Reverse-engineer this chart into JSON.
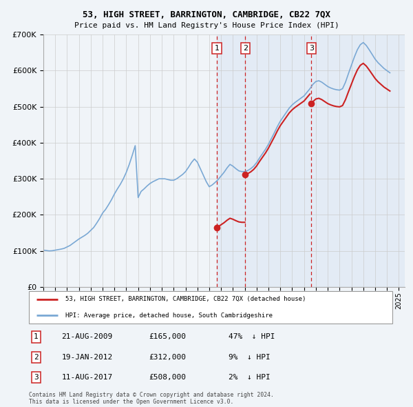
{
  "title": "53, HIGH STREET, BARRINGTON, CAMBRIDGE, CB22 7QX",
  "subtitle": "Price paid vs. HM Land Registry's House Price Index (HPI)",
  "ylim": [
    0,
    700000
  ],
  "yticks": [
    0,
    100000,
    200000,
    300000,
    400000,
    500000,
    600000,
    700000
  ],
  "ytick_labels": [
    "£0",
    "£100K",
    "£200K",
    "£300K",
    "£400K",
    "£500K",
    "£600K",
    "£700K"
  ],
  "xlim_start": 1995.0,
  "xlim_end": 2025.5,
  "background_color": "#f0f4f8",
  "plot_bg_color": "#f0f4f8",
  "grid_color": "#cccccc",
  "hpi_color": "#7aa8d4",
  "price_color": "#cc2222",
  "shade_color": "#ccddf0",
  "legend_hpi_label": "HPI: Average price, detached house, South Cambridgeshire",
  "legend_price_label": "53, HIGH STREET, BARRINGTON, CAMBRIDGE, CB22 7QX (detached house)",
  "transactions": [
    {
      "num": 1,
      "date_str": "21-AUG-2009",
      "date_x": 2009.64,
      "price": 165000,
      "pct": "47%",
      "dir": "↓"
    },
    {
      "num": 2,
      "date_str": "19-JAN-2012",
      "date_x": 2012.05,
      "price": 312000,
      "pct": "9%",
      "dir": "↓"
    },
    {
      "num": 3,
      "date_str": "11-AUG-2017",
      "date_x": 2017.61,
      "price": 508000,
      "pct": "2%",
      "dir": "↓"
    }
  ],
  "footer1": "Contains HM Land Registry data © Crown copyright and database right 2024.",
  "footer2": "This data is licensed under the Open Government Licence v3.0.",
  "hpi_years": [
    1995.0,
    1995.25,
    1995.5,
    1995.75,
    1996.0,
    1996.25,
    1996.5,
    1996.75,
    1997.0,
    1997.25,
    1997.5,
    1997.75,
    1998.0,
    1998.25,
    1998.5,
    1998.75,
    1999.0,
    1999.25,
    1999.5,
    1999.75,
    2000.0,
    2000.25,
    2000.5,
    2000.75,
    2001.0,
    2001.25,
    2001.5,
    2001.75,
    2002.0,
    2002.25,
    2002.5,
    2002.75,
    2003.0,
    2003.25,
    2003.5,
    2003.75,
    2004.0,
    2004.25,
    2004.5,
    2004.75,
    2005.0,
    2005.25,
    2005.5,
    2005.75,
    2006.0,
    2006.25,
    2006.5,
    2006.75,
    2007.0,
    2007.25,
    2007.5,
    2007.75,
    2008.0,
    2008.25,
    2008.5,
    2008.75,
    2009.0,
    2009.25,
    2009.5,
    2009.75,
    2010.0,
    2010.25,
    2010.5,
    2010.75,
    2011.0,
    2011.25,
    2011.5,
    2011.75,
    2012.0,
    2012.25,
    2012.5,
    2012.75,
    2013.0,
    2013.25,
    2013.5,
    2013.75,
    2014.0,
    2014.25,
    2014.5,
    2014.75,
    2015.0,
    2015.25,
    2015.5,
    2015.75,
    2016.0,
    2016.25,
    2016.5,
    2016.75,
    2017.0,
    2017.25,
    2017.5,
    2017.75,
    2018.0,
    2018.25,
    2018.5,
    2018.75,
    2019.0,
    2019.25,
    2019.5,
    2019.75,
    2020.0,
    2020.25,
    2020.5,
    2020.75,
    2021.0,
    2021.25,
    2021.5,
    2021.75,
    2022.0,
    2022.25,
    2022.5,
    2022.75,
    2023.0,
    2023.25,
    2023.5,
    2023.75,
    2024.0,
    2024.25
  ],
  "hpi_values": [
    102000,
    101000,
    100000,
    100500,
    102000,
    103500,
    105000,
    107000,
    111000,
    115000,
    121000,
    127000,
    133000,
    138000,
    143000,
    149000,
    157000,
    165000,
    177000,
    190000,
    205000,
    215000,
    228000,
    242000,
    258000,
    272000,
    285000,
    300000,
    318000,
    340000,
    365000,
    392000,
    248000,
    265000,
    272000,
    280000,
    287000,
    292000,
    296000,
    300000,
    300000,
    300000,
    298000,
    296000,
    296000,
    300000,
    306000,
    312000,
    320000,
    332000,
    345000,
    355000,
    346000,
    328000,
    310000,
    292000,
    278000,
    283000,
    290000,
    298000,
    308000,
    318000,
    330000,
    340000,
    335000,
    328000,
    322000,
    320000,
    320000,
    323000,
    328000,
    335000,
    345000,
    358000,
    370000,
    382000,
    396000,
    412000,
    428000,
    445000,
    460000,
    472000,
    484000,
    496000,
    505000,
    512000,
    518000,
    524000,
    530000,
    540000,
    550000,
    562000,
    570000,
    572000,
    568000,
    562000,
    556000,
    552000,
    549000,
    547000,
    546000,
    550000,
    568000,
    592000,
    615000,
    638000,
    658000,
    672000,
    678000,
    670000,
    658000,
    645000,
    632000,
    622000,
    614000,
    606000,
    600000,
    594000
  ]
}
